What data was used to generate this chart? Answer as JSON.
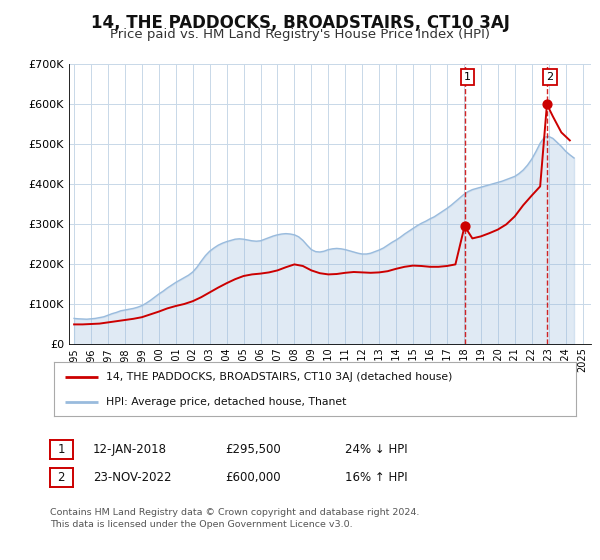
{
  "title": "14, THE PADDOCKS, BROADSTAIRS, CT10 3AJ",
  "subtitle": "Price paid vs. HM Land Registry's House Price Index (HPI)",
  "title_fontsize": 12,
  "subtitle_fontsize": 9.5,
  "background_color": "#ffffff",
  "plot_bg_color": "#ffffff",
  "grid_color": "#c8d8e8",
  "ylim": [
    0,
    700000
  ],
  "yticks": [
    0,
    100000,
    200000,
    300000,
    400000,
    500000,
    600000,
    700000
  ],
  "ytick_labels": [
    "£0",
    "£100K",
    "£200K",
    "£300K",
    "£400K",
    "£500K",
    "£600K",
    "£700K"
  ],
  "xlim_start": 1994.7,
  "xlim_end": 2025.5,
  "red_line_color": "#cc0000",
  "blue_line_color": "#99bbdd",
  "blue_fill_color": "#99bbdd",
  "event1_x": 2018.04,
  "event1_y": 295500,
  "event1_label": "1",
  "event2_x": 2022.9,
  "event2_y": 600000,
  "event2_label": "2",
  "legend_label_red": "14, THE PADDOCKS, BROADSTAIRS, CT10 3AJ (detached house)",
  "legend_label_blue": "HPI: Average price, detached house, Thanet",
  "table_row1": [
    "1",
    "12-JAN-2018",
    "£295,500",
    "24% ↓ HPI"
  ],
  "table_row2": [
    "2",
    "23-NOV-2022",
    "£600,000",
    "16% ↑ HPI"
  ],
  "footer_text": "Contains HM Land Registry data © Crown copyright and database right 2024.\nThis data is licensed under the Open Government Licence v3.0.",
  "hpi_years": [
    1995.0,
    1995.25,
    1995.5,
    1995.75,
    1996.0,
    1996.25,
    1996.5,
    1996.75,
    1997.0,
    1997.25,
    1997.5,
    1997.75,
    1998.0,
    1998.25,
    1998.5,
    1998.75,
    1999.0,
    1999.25,
    1999.5,
    1999.75,
    2000.0,
    2000.25,
    2000.5,
    2000.75,
    2001.0,
    2001.25,
    2001.5,
    2001.75,
    2002.0,
    2002.25,
    2002.5,
    2002.75,
    2003.0,
    2003.25,
    2003.5,
    2003.75,
    2004.0,
    2004.25,
    2004.5,
    2004.75,
    2005.0,
    2005.25,
    2005.5,
    2005.75,
    2006.0,
    2006.25,
    2006.5,
    2006.75,
    2007.0,
    2007.25,
    2007.5,
    2007.75,
    2008.0,
    2008.25,
    2008.5,
    2008.75,
    2009.0,
    2009.25,
    2009.5,
    2009.75,
    2010.0,
    2010.25,
    2010.5,
    2010.75,
    2011.0,
    2011.25,
    2011.5,
    2011.75,
    2012.0,
    2012.25,
    2012.5,
    2012.75,
    2013.0,
    2013.25,
    2013.5,
    2013.75,
    2014.0,
    2014.25,
    2014.5,
    2014.75,
    2015.0,
    2015.25,
    2015.5,
    2015.75,
    2016.0,
    2016.25,
    2016.5,
    2016.75,
    2017.0,
    2017.25,
    2017.5,
    2017.75,
    2018.0,
    2018.25,
    2018.5,
    2018.75,
    2019.0,
    2019.25,
    2019.5,
    2019.75,
    2020.0,
    2020.25,
    2020.5,
    2020.75,
    2021.0,
    2021.25,
    2021.5,
    2021.75,
    2022.0,
    2022.25,
    2022.5,
    2022.75,
    2023.0,
    2023.25,
    2023.5,
    2023.75,
    2024.0,
    2024.25,
    2024.5
  ],
  "hpi_values": [
    65000,
    64000,
    63500,
    63000,
    64000,
    65000,
    67000,
    69000,
    73000,
    77000,
    80000,
    84000,
    86000,
    88000,
    90000,
    93000,
    97000,
    103000,
    110000,
    118000,
    126000,
    133000,
    141000,
    148000,
    155000,
    161000,
    167000,
    173000,
    181000,
    193000,
    208000,
    222000,
    233000,
    241000,
    248000,
    253000,
    257000,
    260000,
    263000,
    264000,
    263000,
    261000,
    259000,
    258000,
    259000,
    263000,
    267000,
    271000,
    274000,
    276000,
    277000,
    276000,
    274000,
    269000,
    260000,
    248000,
    237000,
    232000,
    231000,
    233000,
    237000,
    239000,
    240000,
    239000,
    237000,
    234000,
    231000,
    228000,
    226000,
    226000,
    228000,
    232000,
    236000,
    241000,
    248000,
    255000,
    261000,
    268000,
    276000,
    283000,
    290000,
    297000,
    303000,
    308000,
    314000,
    319000,
    326000,
    333000,
    340000,
    348000,
    357000,
    366000,
    375000,
    382000,
    387000,
    390000,
    393000,
    396000,
    399000,
    402000,
    405000,
    408000,
    412000,
    416000,
    420000,
    427000,
    436000,
    448000,
    463000,
    482000,
    503000,
    518000,
    520000,
    515000,
    505000,
    495000,
    483000,
    474000,
    466000
  ],
  "red_years": [
    1995.0,
    1995.5,
    1996.0,
    1996.5,
    1997.0,
    1997.5,
    1998.0,
    1998.5,
    1999.0,
    1999.5,
    2000.0,
    2000.5,
    2001.0,
    2001.5,
    2002.0,
    2002.5,
    2003.0,
    2003.5,
    2004.0,
    2004.5,
    2005.0,
    2005.5,
    2006.0,
    2006.5,
    2007.0,
    2007.5,
    2008.0,
    2008.5,
    2009.0,
    2009.5,
    2010.0,
    2010.5,
    2011.0,
    2011.5,
    2012.0,
    2012.5,
    2013.0,
    2013.5,
    2014.0,
    2014.5,
    2015.0,
    2015.5,
    2016.0,
    2016.5,
    2017.0,
    2017.5,
    2018.04,
    2018.5,
    2019.0,
    2019.5,
    2020.0,
    2020.5,
    2021.0,
    2021.5,
    2022.0,
    2022.5,
    2022.9,
    2023.25,
    2023.75,
    2024.25
  ],
  "red_values": [
    50000,
    50000,
    51000,
    52000,
    55000,
    58000,
    61000,
    64000,
    68000,
    75000,
    82000,
    90000,
    96000,
    101000,
    108000,
    118000,
    130000,
    142000,
    153000,
    163000,
    171000,
    175000,
    177000,
    180000,
    185000,
    193000,
    200000,
    196000,
    185000,
    178000,
    175000,
    176000,
    179000,
    181000,
    180000,
    179000,
    180000,
    183000,
    189000,
    194000,
    197000,
    196000,
    194000,
    194000,
    196000,
    200000,
    295500,
    265000,
    270000,
    278000,
    287000,
    300000,
    320000,
    348000,
    372000,
    395000,
    600000,
    570000,
    530000,
    510000
  ]
}
